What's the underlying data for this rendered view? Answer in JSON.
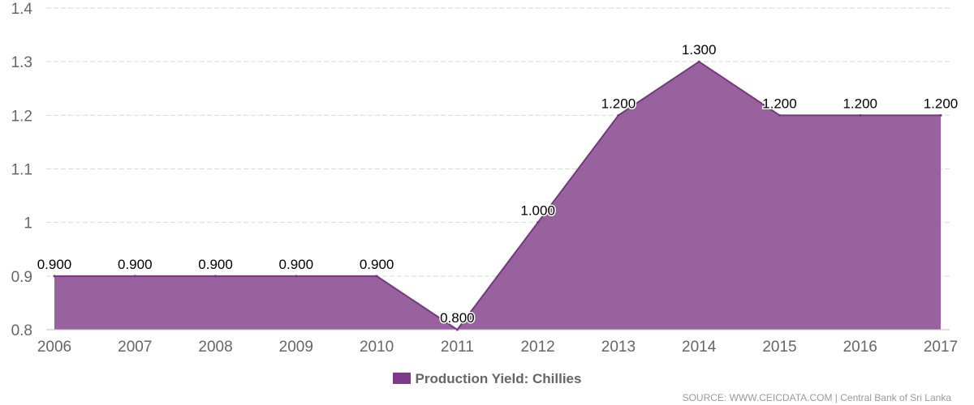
{
  "chart_data": {
    "type": "area",
    "x": [
      "2006",
      "2007",
      "2008",
      "2009",
      "2010",
      "2011",
      "2012",
      "2013",
      "2014",
      "2015",
      "2016",
      "2017"
    ],
    "series": [
      {
        "name": "Production Yield: Chillies",
        "values": [
          0.9,
          0.9,
          0.9,
          0.9,
          0.9,
          0.8,
          1.0,
          1.2,
          1.3,
          1.2,
          1.2,
          1.2
        ],
        "labels": [
          "0.900",
          "0.900",
          "0.900",
          "0.900",
          "0.900",
          "0.800",
          "1.000",
          "1.200",
          "1.300",
          "1.200",
          "1.200",
          "1.200"
        ]
      }
    ],
    "ylim": [
      0.8,
      1.4
    ],
    "yticks": [
      0.8,
      0.9,
      1.0,
      1.1,
      1.2,
      1.3,
      1.4
    ],
    "ytick_labels": [
      "0.8",
      "0.9",
      "1",
      "1.1",
      "1.2",
      "1.3",
      "1.4"
    ],
    "grid": true,
    "legend_position": "bottom-center",
    "colors": {
      "fill": "#98629f",
      "stroke": "#7a3583",
      "legend": "#7d3a88"
    }
  },
  "legend": {
    "label": "Production Yield: Chillies"
  },
  "source": "SOURCE: WWW.CEICDATA.COM | Central Bank of Sri Lanka"
}
